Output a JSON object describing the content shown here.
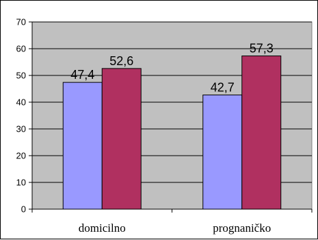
{
  "chart_data": {
    "type": "bar",
    "categories": [
      "domicilno",
      "prognaničko"
    ],
    "series": [
      {
        "values": [
          47.4,
          42.7
        ],
        "labels": [
          "47,4",
          "42,7"
        ],
        "color": "#9999ff"
      },
      {
        "values": [
          52.6,
          57.3
        ],
        "labels": [
          "52,6",
          "57,3"
        ],
        "color": "#b03060"
      }
    ],
    "title": "",
    "xlabel": "",
    "ylabel": "",
    "ylim": [
      0,
      70
    ],
    "yticks": [
      0,
      10,
      20,
      30,
      40,
      50,
      60,
      70
    ],
    "grid": true,
    "legend": "none",
    "plot_background": "#c0c0c0",
    "gridline_color": "#000000"
  }
}
